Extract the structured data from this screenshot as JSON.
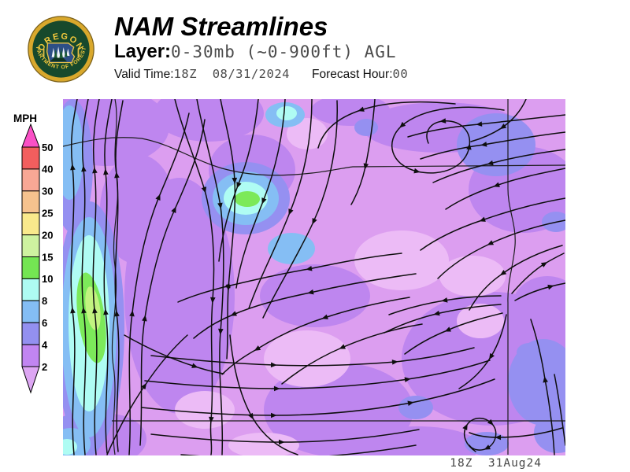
{
  "header": {
    "title": "NAM Streamlines",
    "layer_label": "Layer:",
    "layer_value": "0-30mb (~0-900ft) AGL",
    "valid_time_label": "Valid Time:",
    "valid_time_value": "18Z  08/31/2024",
    "forecast_hour_label": "Forecast Hour:",
    "forecast_hour_value": "00"
  },
  "logo": {
    "arc_top": "OREGON",
    "arc_bottom": "DEPARTMENT OF FORESTRY"
  },
  "legend": {
    "units_label": "MPH",
    "boundary_values": [
      "50",
      "40",
      "30",
      "25",
      "20",
      "15",
      "10",
      "8",
      "6",
      "4",
      "2"
    ],
    "band_colors": [
      "#fa50c6",
      "#f25e5e",
      "#f8a795",
      "#f5c28e",
      "#f9e98c",
      "#cef2a0",
      "#74e553",
      "#aefbf2",
      "#84bdf4",
      "#9390f0",
      "#c185f1",
      "#dda6f3"
    ]
  },
  "map": {
    "timestamp": "18Z  31Aug24",
    "stream_color": "#0e0e0e",
    "border_color": "#1b1b1b",
    "fill_colors": {
      "base": "#dc9ef0",
      "violet_2_4": "#be86ef",
      "light_lt2": "#ecbbf6",
      "periwinkle_4_6": "#9590f1",
      "skyblue_6_8": "#85bef4",
      "cyan_8_10": "#affcf3",
      "green_10_15": "#7ce95a",
      "lightgreen_15_20": "#c2f380"
    }
  }
}
